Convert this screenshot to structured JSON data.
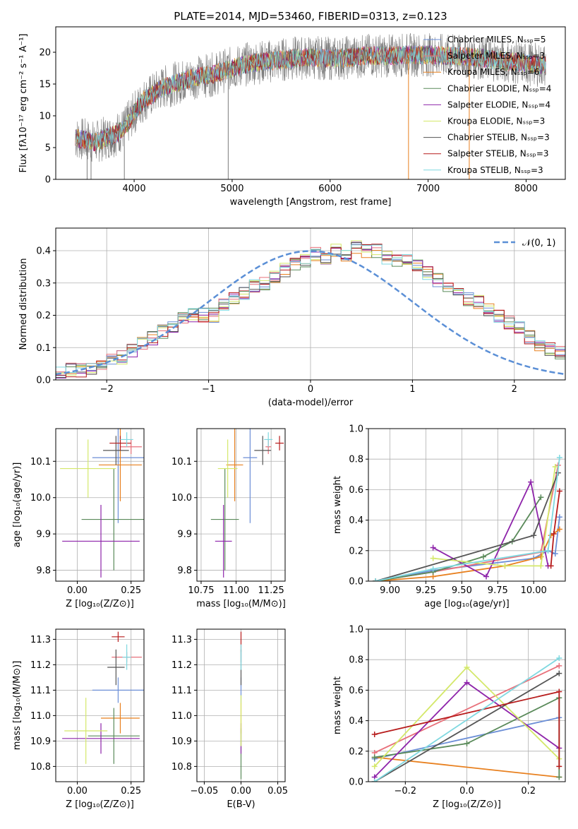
{
  "colors": {
    "Chabrier MILES": "#6b8ed6",
    "Salpeter MILES": "#e8717b",
    "Kroupa MILES": "#e8801f",
    "Chabrier ELODIE": "#5a8a5a",
    "Salpeter ELODIE": "#8e24aa",
    "Kroupa ELODIE": "#d4e86a",
    "Chabrier STELIB": "#555555",
    "Salpeter STELIB": "#b71c1c",
    "Kroupa STELIB": "#7fd8e0",
    "gauss": "#5b8fd6",
    "spectrum_grey": "#7a7a7a"
  },
  "chart_data": [
    {
      "id": "spectrum",
      "type": "line",
      "title": "PLATE=2014, MJD=53460, FIBERID=0313, z=0.123",
      "xlabel": "wavelength [Angstrom, rest frame]",
      "ylabel": "Flux [fλ10⁻¹⁷ erg cm⁻² s⁻¹ A⁻¹]",
      "xlim": [
        3200,
        8400
      ],
      "ylim": [
        0,
        24
      ],
      "xticks": [
        "4000",
        "5000",
        "6000",
        "7000",
        "8000"
      ],
      "yticks": [
        "0",
        "5",
        "10",
        "15",
        "20"
      ],
      "grid": false,
      "legend_position": "top-right",
      "legend": [
        "Chabrier MILES, Nₛₛₚ=5",
        "Salpeter MILES, Nₛₛₚ=3",
        "Kroupa MILES, Nₛₛₚ=6",
        "Chabrier ELODIE, Nₛₛₚ=4",
        "Salpeter ELODIE, Nₛₛₚ=4",
        "Kroupa ELODIE, Nₛₛₚ=3",
        "Chabrier STELIB, Nₛₛₚ=3",
        "Salpeter STELIB, Nₛₛₚ=3",
        "Kroupa STELIB, Nₛₛₚ=3"
      ],
      "continuum": {
        "x": [
          3400,
          3500,
          3600,
          3700,
          3800,
          3900,
          4000,
          4100,
          4200,
          4300,
          4400,
          4600,
          4800,
          5000,
          5200,
          5400,
          5600,
          5800,
          6000,
          6200,
          6400,
          6600,
          6800,
          7000,
          7200,
          7400,
          7600,
          7800,
          8000,
          8200
        ],
        "y": [
          6.5,
          6.2,
          5.8,
          6.5,
          7.0,
          8.0,
          10.5,
          12.5,
          13.5,
          14.5,
          15.0,
          16.0,
          16.5,
          17.5,
          18.3,
          18.6,
          19.0,
          19.2,
          19.0,
          19.2,
          19.5,
          19.4,
          19.6,
          19.6,
          19.4,
          19.3,
          19.0,
          18.6,
          18.2,
          17.9
        ]
      }
    },
    {
      "id": "residuals",
      "type": "line",
      "xlabel": "(data-model)/error",
      "ylabel": "Normed distribution",
      "xlim": [
        -2.5,
        2.5
      ],
      "ylim": [
        0,
        0.47
      ],
      "xticks": [
        "−2",
        "−1",
        "0",
        "1",
        "2"
      ],
      "yticks": [
        "0.0",
        "0.1",
        "0.2",
        "0.3",
        "0.4"
      ],
      "grid": true,
      "legend": [
        "𝒩(0, 1)"
      ],
      "legend_position": "top-right",
      "histogram": {
        "bin_width": 0.1,
        "bin_start": -2.5,
        "values": [
          0.021,
          0.032,
          0.03,
          0.035,
          0.045,
          0.06,
          0.07,
          0.09,
          0.11,
          0.13,
          0.15,
          0.17,
          0.19,
          0.2,
          0.2,
          0.2,
          0.23,
          0.25,
          0.27,
          0.29,
          0.3,
          0.32,
          0.34,
          0.36,
          0.37,
          0.39,
          0.38,
          0.4,
          0.39,
          0.41,
          0.4,
          0.4,
          0.38,
          0.37,
          0.38,
          0.36,
          0.33,
          0.31,
          0.29,
          0.28,
          0.25,
          0.24,
          0.22,
          0.2,
          0.18,
          0.16,
          0.13,
          0.11,
          0.095,
          0.085,
          0.07,
          0.06,
          0.05,
          0.04,
          0.03,
          0.025
        ]
      },
      "gaussian": {
        "mean": 0,
        "sigma": 1
      }
    },
    {
      "id": "age-vs-Z",
      "type": "scatter",
      "xlabel": "Z [log₁₀(Z/Z⊙)]",
      "ylabel": "age  [log₁₀(age/yr)]",
      "xlim": [
        -0.1,
        0.31
      ],
      "ylim": [
        9.77,
        10.19
      ],
      "xticks": [
        "0.00",
        "0.25"
      ],
      "yticks": [
        "9.8",
        "9.9",
        "10.0",
        "10.1"
      ],
      "grid": true,
      "points": [
        {
          "model": "Chabrier MILES",
          "x": 0.19,
          "y": 10.11,
          "xerr": 0.12,
          "yerr": 0.18
        },
        {
          "model": "Salpeter MILES",
          "x": 0.25,
          "y": 10.14,
          "xerr": 0.05,
          "yerr": 0.02
        },
        {
          "model": "Kroupa MILES",
          "x": 0.2,
          "y": 10.09,
          "xerr": 0.1,
          "yerr": 0.1
        },
        {
          "model": "Chabrier ELODIE",
          "x": 0.17,
          "y": 9.94,
          "xerr": 0.15,
          "yerr": 0.14
        },
        {
          "model": "Salpeter ELODIE",
          "x": 0.11,
          "y": 9.88,
          "xerr": 0.18,
          "yerr": 0.1
        },
        {
          "model": "Kroupa ELODIE",
          "x": 0.05,
          "y": 10.08,
          "xerr": 0.13,
          "yerr": 0.08
        },
        {
          "model": "Chabrier STELIB",
          "x": 0.18,
          "y": 10.13,
          "xerr": 0.06,
          "yerr": 0.04
        },
        {
          "model": "Salpeter STELIB",
          "x": 0.2,
          "y": 10.15,
          "xerr": 0.05,
          "yerr": 0.02
        },
        {
          "model": "Kroupa STELIB",
          "x": 0.23,
          "y": 10.16,
          "xerr": 0.03,
          "yerr": 0.02
        }
      ]
    },
    {
      "id": "age-vs-mass",
      "type": "scatter",
      "xlabel": "mass [log₁₀(M/M⊙)]",
      "ylabel": "",
      "xlim": [
        10.72,
        11.35
      ],
      "ylim": [
        9.77,
        10.19
      ],
      "xticks": [
        "10.75",
        "11.00",
        "11.25"
      ],
      "yticks": [
        "9.8",
        "9.9",
        "10.0",
        "10.1"
      ],
      "grid": true,
      "points": [
        {
          "model": "Chabrier MILES",
          "x": 11.1,
          "y": 10.11,
          "xerr": 0.05,
          "yerr": 0.18
        },
        {
          "model": "Salpeter MILES",
          "x": 11.23,
          "y": 10.14,
          "xerr": 0.02,
          "yerr": 0.02
        },
        {
          "model": "Kroupa MILES",
          "x": 10.99,
          "y": 10.09,
          "xerr": 0.06,
          "yerr": 0.1
        },
        {
          "model": "Chabrier ELODIE",
          "x": 10.92,
          "y": 9.94,
          "xerr": 0.1,
          "yerr": 0.14
        },
        {
          "model": "Salpeter ELODIE",
          "x": 10.91,
          "y": 9.88,
          "xerr": 0.06,
          "yerr": 0.1
        },
        {
          "model": "Kroupa ELODIE",
          "x": 10.94,
          "y": 10.08,
          "xerr": 0.07,
          "yerr": 0.08
        },
        {
          "model": "Chabrier STELIB",
          "x": 11.19,
          "y": 10.13,
          "xerr": 0.06,
          "yerr": 0.04
        },
        {
          "model": "Salpeter STELIB",
          "x": 11.31,
          "y": 10.15,
          "xerr": 0.03,
          "yerr": 0.02
        },
        {
          "model": "Kroupa STELIB",
          "x": 11.23,
          "y": 10.16,
          "xerr": 0.03,
          "yerr": 0.02
        }
      ]
    },
    {
      "id": "weight-vs-age",
      "type": "line",
      "xlabel": "age  [log₁₀(age/yr)]",
      "ylabel": "mass weight",
      "xlim": [
        8.85,
        10.22
      ],
      "ylim": [
        0,
        1.0
      ],
      "xticks": [
        "9.00",
        "9.25",
        "9.50",
        "9.75",
        "10.00"
      ],
      "yticks": [
        "0.0",
        "0.2",
        "0.4",
        "0.6",
        "0.8",
        "1.0"
      ],
      "grid": true,
      "series": [
        {
          "model": "Chabrier MILES",
          "x": [
            8.9,
            9.3,
            10.0,
            10.1,
            10.15,
            10.18
          ],
          "y": [
            0.0,
            0.07,
            0.15,
            0.2,
            0.18,
            0.42
          ]
        },
        {
          "model": "Salpeter MILES",
          "x": [
            8.9,
            9.3,
            10.05,
            10.17
          ],
          "y": [
            0.0,
            0.06,
            0.19,
            0.76
          ]
        },
        {
          "model": "Kroupa MILES",
          "x": [
            8.9,
            9.3,
            9.8,
            10.05,
            10.12,
            10.18
          ],
          "y": [
            0.0,
            0.03,
            0.1,
            0.16,
            0.3,
            0.34
          ]
        },
        {
          "model": "Chabrier ELODIE",
          "x": [
            8.9,
            9.3,
            9.65,
            9.85,
            10.05
          ],
          "y": [
            0.0,
            0.06,
            0.16,
            0.26,
            0.55
          ]
        },
        {
          "model": "Salpeter ELODIE",
          "x": [
            9.3,
            9.67,
            9.98,
            10.1
          ],
          "y": [
            0.22,
            0.03,
            0.65,
            0.1
          ]
        },
        {
          "model": "Kroupa ELODIE",
          "x": [
            9.3,
            9.8,
            10.05,
            10.15
          ],
          "y": [
            0.15,
            0.1,
            0.1,
            0.75
          ]
        },
        {
          "model": "Chabrier STELIB",
          "x": [
            8.9,
            10.0,
            10.17
          ],
          "y": [
            0.0,
            0.3,
            0.71
          ]
        },
        {
          "model": "Salpeter STELIB",
          "x": [
            10.12,
            10.14,
            10.18
          ],
          "y": [
            0.1,
            0.31,
            0.59
          ]
        },
        {
          "model": "Kroupa STELIB",
          "x": [
            8.9,
            9.3,
            10.1,
            10.18
          ],
          "y": [
            0.0,
            0.08,
            0.2,
            0.81
          ]
        }
      ]
    },
    {
      "id": "mass-vs-Z",
      "type": "scatter",
      "xlabel": "Z [log₁₀(Z/Z⊙)]",
      "ylabel": "mass [log₁₀(M/M⊙)]",
      "xlim": [
        -0.1,
        0.31
      ],
      "ylim": [
        10.74,
        11.34
      ],
      "xticks": [
        "0.00",
        "0.25"
      ],
      "yticks": [
        "10.8",
        "10.9",
        "11.0",
        "11.1",
        "11.2",
        "11.3"
      ],
      "grid": true,
      "points": [
        {
          "model": "Chabrier MILES",
          "x": 0.19,
          "y": 11.1,
          "xerr": 0.12,
          "yerr": 0.05
        },
        {
          "model": "Salpeter MILES",
          "x": 0.23,
          "y": 11.23,
          "xerr": 0.07,
          "yerr": 0.02
        },
        {
          "model": "Kroupa MILES",
          "x": 0.2,
          "y": 10.99,
          "xerr": 0.09,
          "yerr": 0.06
        },
        {
          "model": "Chabrier ELODIE",
          "x": 0.17,
          "y": 10.92,
          "xerr": 0.12,
          "yerr": 0.11
        },
        {
          "model": "Salpeter ELODIE",
          "x": 0.11,
          "y": 10.91,
          "xerr": 0.18,
          "yerr": 0.06
        },
        {
          "model": "Kroupa ELODIE",
          "x": 0.04,
          "y": 10.94,
          "xerr": 0.1,
          "yerr": 0.13
        },
        {
          "model": "Chabrier STELIB",
          "x": 0.18,
          "y": 11.19,
          "xerr": 0.04,
          "yerr": 0.07
        },
        {
          "model": "Salpeter STELIB",
          "x": 0.19,
          "y": 11.31,
          "xerr": 0.03,
          "yerr": 0.02
        },
        {
          "model": "Kroupa STELIB",
          "x": 0.23,
          "y": 11.23,
          "xerr": 0.02,
          "yerr": 0.05
        }
      ]
    },
    {
      "id": "mass-vs-ebv",
      "type": "scatter",
      "xlabel": "E(B-V)",
      "ylabel": "",
      "xlim": [
        -0.06,
        0.06
      ],
      "ylim": [
        10.74,
        11.34
      ],
      "xticks": [
        "−0.05",
        "0.00",
        "0.05"
      ],
      "yticks": [
        "10.8",
        "10.9",
        "11.0",
        "11.1",
        "11.2",
        "11.3"
      ],
      "grid": true,
      "points": [
        {
          "model": "Chabrier MILES",
          "x": 0.0,
          "y": 11.1,
          "xerr": 0.0,
          "yerr": 0.05
        },
        {
          "model": "Salpeter MILES",
          "x": 0.0,
          "y": 11.23,
          "xerr": 0.0,
          "yerr": 0.02
        },
        {
          "model": "Kroupa MILES",
          "x": 0.0,
          "y": 10.99,
          "xerr": 0.0,
          "yerr": 0.06
        },
        {
          "model": "Chabrier ELODIE",
          "x": 0.0,
          "y": 10.85,
          "xerr": 0.0,
          "yerr": 0.1
        },
        {
          "model": "Salpeter ELODIE",
          "x": 0.0,
          "y": 10.91,
          "xerr": 0.0,
          "yerr": 0.06
        },
        {
          "model": "Kroupa ELODIE",
          "x": 0.0,
          "y": 10.98,
          "xerr": 0.0,
          "yerr": 0.1
        },
        {
          "model": "Chabrier STELIB",
          "x": 0.0,
          "y": 11.19,
          "xerr": 0.0,
          "yerr": 0.07
        },
        {
          "model": "Salpeter STELIB",
          "x": 0.0,
          "y": 11.29,
          "xerr": 0.0,
          "yerr": 0.04
        },
        {
          "model": "Kroupa STELIB",
          "x": 0.0,
          "y": 11.23,
          "xerr": 0.0,
          "yerr": 0.05
        }
      ]
    },
    {
      "id": "weight-vs-Z",
      "type": "line",
      "xlabel": "Z [log₁₀(Z/Z⊙)]",
      "ylabel": "mass weight",
      "xlim": [
        -0.32,
        0.32
      ],
      "ylim": [
        0,
        1.0
      ],
      "xticks": [
        "−0.2",
        "0.0",
        "0.2"
      ],
      "yticks": [
        "0.0",
        "0.2",
        "0.4",
        "0.6",
        "0.8",
        "1.0"
      ],
      "grid": true,
      "series": [
        {
          "model": "Chabrier MILES",
          "x": [
            -0.3,
            0.3
          ],
          "y": [
            0.15,
            0.42
          ]
        },
        {
          "model": "Salpeter MILES",
          "x": [
            -0.3,
            0.3
          ],
          "y": [
            0.19,
            0.76
          ]
        },
        {
          "model": "Kroupa MILES",
          "x": [
            -0.3,
            0.3
          ],
          "y": [
            0.16,
            0.03
          ]
        },
        {
          "model": "Chabrier ELODIE",
          "x": [
            -0.3,
            0.0,
            0.3,
            0.3
          ],
          "y": [
            0.16,
            0.25,
            0.55,
            0.03
          ]
        },
        {
          "model": "Salpeter ELODIE",
          "x": [
            -0.3,
            0.0,
            0.3
          ],
          "y": [
            0.03,
            0.65,
            0.22
          ]
        },
        {
          "model": "Kroupa ELODIE",
          "x": [
            -0.3,
            0.0,
            0.3
          ],
          "y": [
            0.1,
            0.75,
            0.15
          ]
        },
        {
          "model": "Chabrier STELIB",
          "x": [
            -0.3,
            0.3
          ],
          "y": [
            0.0,
            0.71
          ]
        },
        {
          "model": "Salpeter STELIB",
          "x": [
            -0.3,
            0.3,
            0.3
          ],
          "y": [
            0.31,
            0.59,
            0.1
          ]
        },
        {
          "model": "Kroupa STELIB",
          "x": [
            -0.3,
            0.3
          ],
          "y": [
            0.0,
            0.81
          ]
        }
      ]
    }
  ]
}
